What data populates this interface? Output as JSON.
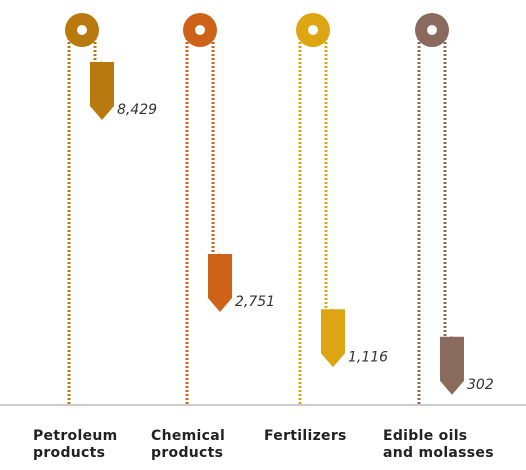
{
  "chart_data": {
    "type": "hanging-weights",
    "categories": [
      "Petroleum products",
      "Chemical products",
      "Fertilizers",
      "Edible oils and molasses"
    ],
    "values": [
      8429,
      2751,
      1116,
      302
    ],
    "value_labels": [
      "8,429",
      "2,751",
      "1,116",
      "302"
    ],
    "colors": [
      "#b8790f",
      "#cf6219",
      "#dca511",
      "#8a6a5c"
    ]
  }
}
